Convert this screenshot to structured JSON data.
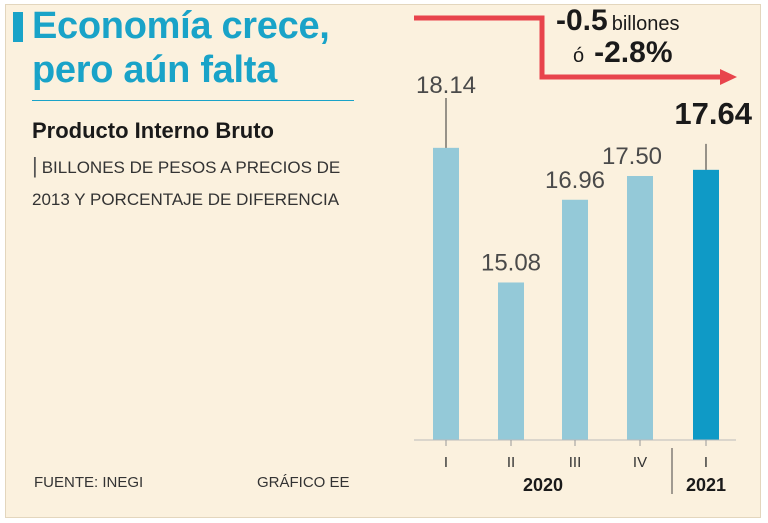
{
  "title": "Economía crece, pero aún falta",
  "subtitle": "Producto Interno Bruto",
  "description": "BILLONES DE PESOS A PRECIOS DE 2013 Y PORCENTAJE DE DIFERENCIA",
  "source": "FUENTE: INEGI",
  "credit": "GRÁFICO EE",
  "delta": {
    "amount": "-0.5",
    "amount_unit": "billones",
    "connector": "ó",
    "percent": "-2.8%"
  },
  "colors": {
    "bar": "#94c9d8",
    "highlight": "#0f9ac6",
    "arrow": "#e8444c",
    "title": "#19a3c8",
    "background": "#fbf1de"
  },
  "chart_data": {
    "type": "bar",
    "title": "Producto Interno Bruto",
    "categories": [
      "I",
      "II",
      "III",
      "IV",
      "I"
    ],
    "years": [
      {
        "label": "2020",
        "quarters": [
          "I",
          "II",
          "III",
          "IV"
        ]
      },
      {
        "label": "2021",
        "quarters": [
          "I"
        ]
      }
    ],
    "values": [
      18.14,
      15.08,
      16.96,
      17.5,
      17.64
    ],
    "labels": [
      "18.14",
      "15.08",
      "16.96",
      "17.50",
      "17.64"
    ],
    "highlight_index": 4,
    "ylim": [
      11.5,
      19.0
    ],
    "xlabel": "",
    "ylabel": "Billones de pesos a precios de 2013"
  }
}
